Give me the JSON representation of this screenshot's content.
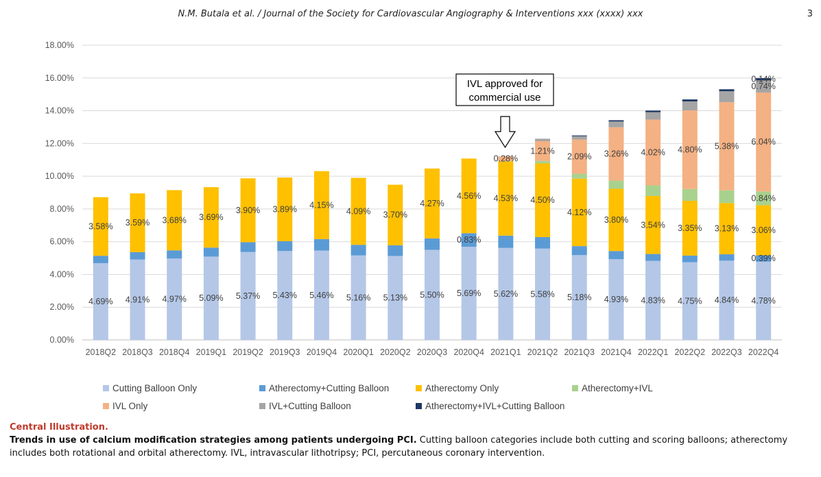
{
  "header": {
    "running_head": "N.M. Butala et al. / Journal of the Society for Cardiovascular Angiography & Interventions xxx (xxxx) xxx",
    "page_number": "3"
  },
  "annotation": {
    "line1": "IVL approved for",
    "line2": "commercial use"
  },
  "caption": {
    "title": "Central Illustration.",
    "bold": "Trends in use of calcium modification strategies among patients undergoing PCI.",
    "rest": " Cutting balloon categories include both cutting and scoring balloons; atherectomy includes both rotational and orbital atherectomy. IVL, intravascular lithotripsy; PCI, percutaneous coronary intervention."
  },
  "chart_data": {
    "type": "bar",
    "stacked": true,
    "ylim": [
      0,
      18
    ],
    "yticks": [
      "0.00%",
      "2.00%",
      "4.00%",
      "6.00%",
      "8.00%",
      "10.00%",
      "12.00%",
      "14.00%",
      "16.00%",
      "18.00%"
    ],
    "grid": true,
    "legend_position": "bottom",
    "categories": [
      "2018Q2",
      "2018Q3",
      "2018Q4",
      "2019Q1",
      "2019Q2",
      "2019Q3",
      "2019Q4",
      "2020Q1",
      "2020Q2",
      "2020Q3",
      "2020Q4",
      "2021Q1",
      "2021Q2",
      "2021Q3",
      "2021Q4",
      "2022Q1",
      "2022Q2",
      "2022Q3",
      "2022Q4"
    ],
    "series": [
      {
        "name": "Cutting Balloon Only",
        "color": "#b4c7e7",
        "values": [
          4.69,
          4.91,
          4.97,
          5.09,
          5.37,
          5.43,
          5.46,
          5.16,
          5.13,
          5.5,
          5.69,
          5.62,
          5.58,
          5.18,
          4.93,
          4.83,
          4.75,
          4.84,
          4.78
        ],
        "labels": [
          "4.69%",
          "4.91%",
          "4.97%",
          "5.09%",
          "5.37%",
          "5.43%",
          "5.46%",
          "5.16%",
          "5.13%",
          "5.50%",
          "5.69%",
          "5.62%",
          "5.58%",
          "5.18%",
          "4.93%",
          "4.83%",
          "4.75%",
          "4.84%",
          "4.78%"
        ]
      },
      {
        "name": "Atherectomy+Cutting Balloon",
        "color": "#5b9bd5",
        "values": [
          0.45,
          0.45,
          0.5,
          0.55,
          0.6,
          0.6,
          0.7,
          0.65,
          0.65,
          0.7,
          0.83,
          0.75,
          0.7,
          0.55,
          0.5,
          0.42,
          0.4,
          0.39,
          0.39
        ],
        "labels": [
          "",
          "",
          "",
          "",
          "",
          "",
          "",
          "",
          "",
          "",
          "0.83%",
          "",
          "",
          "",
          "",
          "",
          "",
          "",
          "0.39%"
        ]
      },
      {
        "name": "Atherectomy Only",
        "color": "#ffc000",
        "values": [
          3.58,
          3.59,
          3.68,
          3.69,
          3.9,
          3.89,
          4.15,
          4.09,
          3.7,
          4.27,
          4.56,
          4.53,
          4.5,
          4.12,
          3.8,
          3.54,
          3.35,
          3.13,
          3.06
        ],
        "labels": [
          "3.58%",
          "3.59%",
          "3.68%",
          "3.69%",
          "3.90%",
          "3.89%",
          "4.15%",
          "4.09%",
          "3.70%",
          "4.27%",
          "4.56%",
          "4.53%",
          "4.50%",
          "4.12%",
          "3.80%",
          "3.54%",
          "3.35%",
          "3.13%",
          "3.06%"
        ]
      },
      {
        "name": "Atherectomy+IVL",
        "color": "#a9d18e",
        "values": [
          0,
          0,
          0,
          0,
          0,
          0,
          0,
          0,
          0,
          0,
          0,
          0.03,
          0.15,
          0.3,
          0.5,
          0.65,
          0.72,
          0.78,
          0.84
        ],
        "labels": [
          "",
          "",
          "",
          "",
          "",
          "",
          "",
          "",
          "",
          "",
          "",
          "",
          "",
          "",
          "",
          "",
          "",
          "",
          "0.84%"
        ]
      },
      {
        "name": "IVL Only",
        "color": "#f4b183",
        "values": [
          0,
          0,
          0,
          0,
          0,
          0,
          0,
          0,
          0,
          0,
          0,
          0.28,
          1.21,
          2.09,
          3.26,
          4.02,
          4.8,
          5.38,
          6.04
        ],
        "labels": [
          "",
          "",
          "",
          "",
          "",
          "",
          "",
          "",
          "",
          "",
          "",
          "0.28%",
          "1.21%",
          "2.09%",
          "3.26%",
          "4.02%",
          "4.80%",
          "5.38%",
          "6.04%"
        ]
      },
      {
        "name": "IVL+Cutting Balloon",
        "color": "#a5a5a5",
        "values": [
          0,
          0,
          0,
          0,
          0,
          0,
          0,
          0,
          0,
          0,
          0,
          0,
          0.15,
          0.2,
          0.35,
          0.45,
          0.55,
          0.67,
          0.74
        ],
        "labels": [
          "",
          "",
          "",
          "",
          "",
          "",
          "",
          "",
          "",
          "",
          "",
          "",
          "",
          "",
          "",
          "",
          "",
          "",
          "0.74%"
        ]
      },
      {
        "name": "Atherectomy+IVL+Cutting Balloon",
        "color": "#1f3864",
        "values": [
          0,
          0,
          0,
          0,
          0,
          0,
          0,
          0,
          0,
          0,
          0,
          0,
          0,
          0.05,
          0.08,
          0.1,
          0.12,
          0.12,
          0.14
        ],
        "labels": [
          "",
          "",
          "",
          "",
          "",
          "",
          "",
          "",
          "",
          "",
          "",
          "",
          "",
          "",
          "",
          "",
          "",
          "",
          "0.14%"
        ]
      }
    ]
  }
}
